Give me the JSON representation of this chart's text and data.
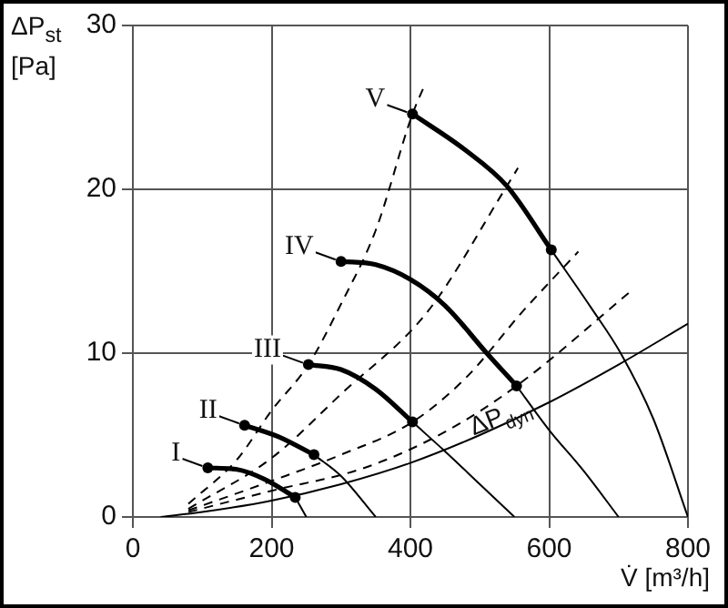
{
  "chart_data": {
    "type": "line",
    "xlabel": "V̇ [m³/h]",
    "ylabel": "ΔP$_{st}$ [Pa]",
    "xlim": [
      0,
      800
    ],
    "xticks": [
      0,
      200,
      400,
      600,
      800
    ],
    "ylim": [
      0,
      30
    ],
    "yticks": [
      0,
      10,
      20,
      30
    ],
    "grid": true,
    "marker": "none",
    "annotations": [
      {
        "text": "ΔP$_{dyn}$",
        "x": 540,
        "y": 5.8
      },
      {
        "text": "I",
        "x": 108,
        "y": 3.0
      },
      {
        "text": "II",
        "x": 161,
        "y": 5.6
      },
      {
        "text": "III",
        "x": 253,
        "y": 9.3
      },
      {
        "text": "IV",
        "x": 300,
        "y": 15.6
      },
      {
        "text": "V",
        "x": 403,
        "y": 24.6
      }
    ],
    "series": [
      {
        "color": "#000000",
        "x": [
          108,
          150,
          190,
          234
        ],
        "values": [
          3.0,
          2.9,
          2.3,
          1.2
        ]
      },
      {
        "color": "#000000",
        "x": [
          234,
          250
        ],
        "values": [
          1.2,
          0
        ]
      },
      {
        "color": "#000000",
        "x": [
          161,
          210,
          261
        ],
        "values": [
          5.6,
          4.9,
          3.8
        ]
      },
      {
        "color": "#000000",
        "x": [
          261,
          300,
          350
        ],
        "values": [
          3.8,
          2.5,
          0
        ]
      },
      {
        "color": "#000000",
        "x": [
          253,
          300,
          350,
          403
        ],
        "values": [
          9.3,
          9.0,
          7.8,
          5.8
        ]
      },
      {
        "color": "#000000",
        "x": [
          403,
          450,
          500,
          550
        ],
        "values": [
          5.8,
          4.0,
          2.0,
          0
        ]
      },
      {
        "color": "#000000",
        "x": [
          300,
          350,
          400,
          450,
          510,
          553
        ],
        "values": [
          15.6,
          15.4,
          14.5,
          12.9,
          10,
          8.0
        ]
      },
      {
        "color": "#000000",
        "x": [
          553,
          600,
          650,
          700
        ],
        "values": [
          8.0,
          5.3,
          2.8,
          0
        ]
      },
      {
        "color": "#000000",
        "x": [
          403,
          479,
          539,
          603
        ],
        "values": [
          24.6,
          22.4,
          20.2,
          16.3
        ]
      },
      {
        "color": "#000000",
        "x": [
          603,
          660,
          703,
          750,
          800
        ],
        "values": [
          16.3,
          12.8,
          10,
          6,
          0
        ]
      },
      {
        "color": "#000000",
        "line_style": "dashed",
        "x": [
          80,
          150,
          200,
          253,
          300,
          350,
          403,
          421
        ],
        "values": [
          0.8,
          3.5,
          6.5,
          9.3,
          13,
          17.5,
          24.6,
          26.4
        ]
      },
      {
        "color": "#000000",
        "line_style": "dashed",
        "x": [
          80,
          200,
          300,
          426,
          539,
          555
        ],
        "values": [
          0.5,
          3.6,
          7.5,
          12.6,
          20.2,
          21.3
        ]
      },
      {
        "color": "#000000",
        "line_style": "dashed",
        "x": [
          80,
          200,
          300,
          403,
          480,
          563,
          642
        ],
        "values": [
          0.4,
          2.2,
          3.8,
          5.8,
          8.5,
          12.6,
          16.2
        ]
      },
      {
        "color": "#000000",
        "line_style": "dashed",
        "x": [
          80,
          200,
          334,
          450,
          553,
          721
        ],
        "values": [
          0.3,
          1.6,
          3.0,
          5.2,
          8.0,
          13.9
        ]
      },
      {
        "color": "#000000",
        "x": [
          40,
          100,
          200,
          300,
          400,
          500,
          600,
          700,
          800
        ],
        "values": [
          0,
          0.3,
          1.0,
          2.0,
          3.3,
          5.0,
          7.0,
          9.3,
          11.8
        ]
      },
      {
        "type": "scatter",
        "color": "#000000",
        "marker": "circle",
        "x": [
          108,
          234,
          161,
          261,
          253,
          403,
          300,
          553,
          403,
          603
        ],
        "values": [
          3.0,
          1.2,
          5.6,
          3.8,
          9.3,
          5.8,
          15.6,
          8.0,
          24.6,
          16.3
        ]
      }
    ]
  }
}
